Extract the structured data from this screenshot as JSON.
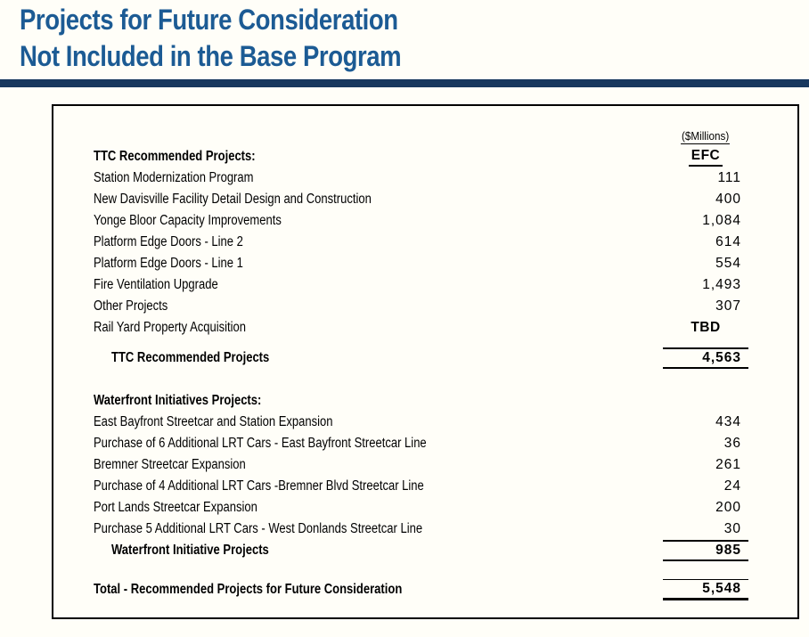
{
  "title": {
    "line1": "Projects for Future Consideration",
    "line2": "Not Included in the Base Program",
    "color": "#1C5B94"
  },
  "divider": {
    "color": "#17375E"
  },
  "table": {
    "units_label": "($Millions)",
    "column_header": "EFC",
    "sections": [
      {
        "header": "TTC Recommended Projects:",
        "rows": [
          {
            "label": "Station Modernization Program",
            "value": "111"
          },
          {
            "label": "New Davisville Facility Detail Design and Construction",
            "value": "400"
          },
          {
            "label": "Yonge Bloor Capacity Improvements",
            "value": "1,084"
          },
          {
            "label": "Platform Edge Doors - Line 2",
            "value": "614"
          },
          {
            "label": "Platform Edge Doors - Line 1",
            "value": "554"
          },
          {
            "label": "Fire Ventilation Upgrade",
            "value": "1,493"
          },
          {
            "label": "Other Projects",
            "value": "307"
          },
          {
            "label": "Rail Yard Property Acquisition",
            "value": "TBD"
          }
        ],
        "subtotal": {
          "label": "TTC Recommended Projects",
          "value": "4,563"
        }
      },
      {
        "header": "Waterfront Initiatives Projects:",
        "rows": [
          {
            "label": "East Bayfront Streetcar and Station Expansion",
            "value": "434"
          },
          {
            "label": "Purchase of 6 Additional LRT Cars - East Bayfront Streetcar Line",
            "value": "36"
          },
          {
            "label": "Bremner Streetcar Expansion",
            "value": "261"
          },
          {
            "label": "Purchase of 4 Additional LRT Cars -Bremner Blvd Streetcar Line",
            "value": "24"
          },
          {
            "label": "Port Lands Streetcar Expansion",
            "value": "200"
          },
          {
            "label": "Purchase 5 Additional LRT Cars - West Donlands Streetcar Line",
            "value": "30"
          }
        ],
        "subtotal": {
          "label": "Waterfront Initiative Projects",
          "value": "985"
        }
      }
    ],
    "total": {
      "label": "Total - Recommended Projects for Future Consideration",
      "value": "5,548"
    }
  }
}
